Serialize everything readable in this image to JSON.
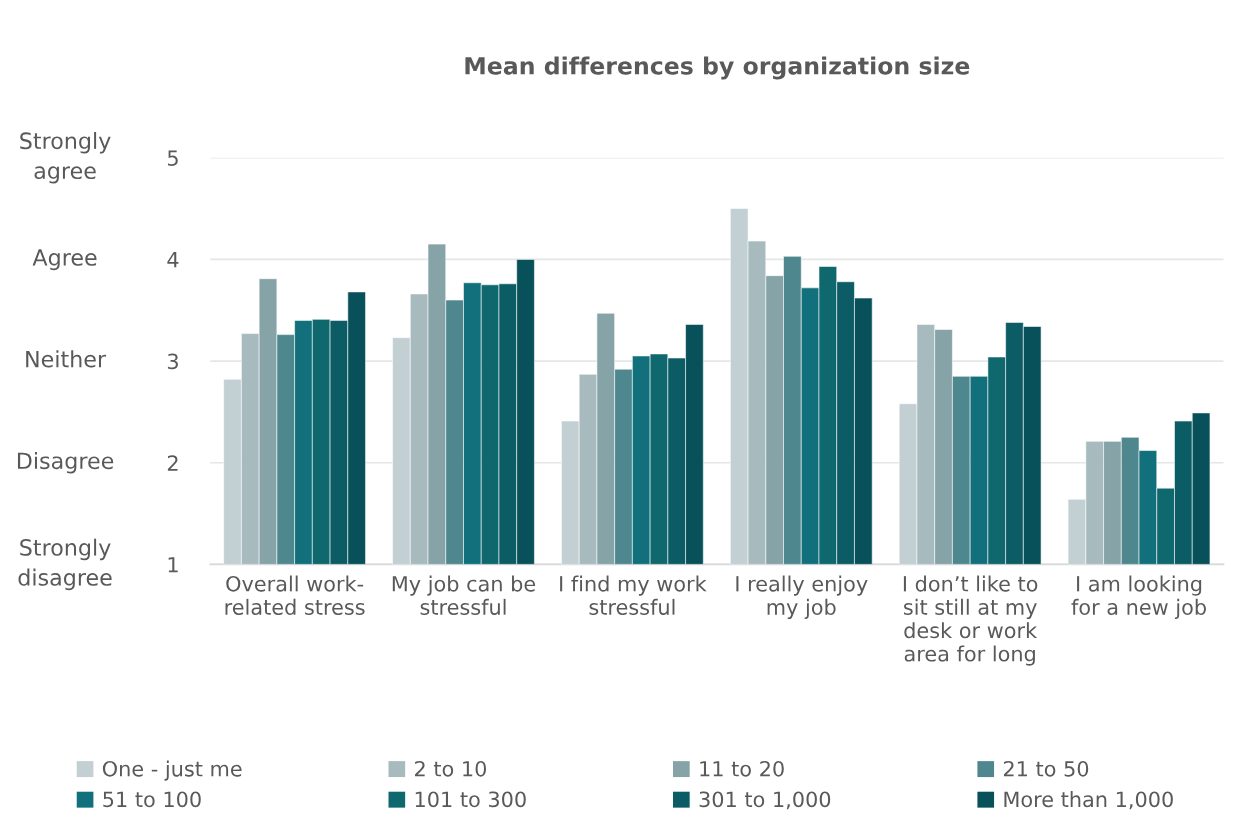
{
  "chart_data": {
    "type": "bar",
    "title": "Mean differences by organization size",
    "categories": [
      "Overall work-\nrelated stress",
      "My job can be\nstressful",
      "I find my work\nstressful",
      "I really enjoy\nmy job",
      "I don’t like to\nsit still at my\ndesk or work\narea for long",
      "I am looking\nfor a new job"
    ],
    "series": [
      {
        "name": "One - just me",
        "color": "#c2cfd3",
        "values": [
          2.82,
          3.23,
          2.41,
          4.5,
          2.58,
          1.64
        ]
      },
      {
        "name": "2 to 10",
        "color": "#a7babe",
        "values": [
          3.27,
          3.66,
          2.87,
          4.18,
          3.36,
          2.21
        ]
      },
      {
        "name": "11 to 20",
        "color": "#86a4a8",
        "values": [
          3.81,
          4.15,
          3.47,
          3.84,
          3.31,
          2.21
        ]
      },
      {
        "name": "21 to 50",
        "color": "#4f878f",
        "values": [
          3.26,
          3.6,
          2.92,
          4.03,
          2.85,
          2.25
        ]
      },
      {
        "name": "51 to 100",
        "color": "#11707b",
        "values": [
          3.4,
          3.77,
          3.05,
          3.72,
          2.85,
          2.12
        ]
      },
      {
        "name": "101 to 300",
        "color": "#10686f",
        "values": [
          3.41,
          3.75,
          3.07,
          3.93,
          3.04,
          1.75
        ]
      },
      {
        "name": "301 to 1,000",
        "color": "#0c5c65",
        "values": [
          3.4,
          3.76,
          3.03,
          3.78,
          3.38,
          2.41
        ]
      },
      {
        "name": "More than 1,000",
        "color": "#09515a",
        "values": [
          3.68,
          4.0,
          3.36,
          3.62,
          3.34,
          2.49
        ]
      }
    ],
    "ylim": [
      1,
      5
    ],
    "yticks": [
      1,
      2,
      3,
      4,
      5
    ],
    "annotations": [
      "Strongly\ndisagree",
      "Disagree",
      "Neither",
      "Agree",
      "Strongly\nagree"
    ],
    "grid": "y",
    "legend": "bottom"
  }
}
